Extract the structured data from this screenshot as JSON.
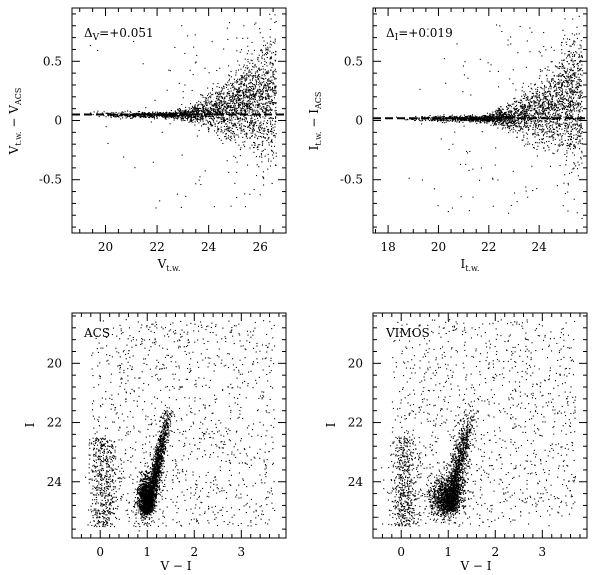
{
  "chart_data": [
    {
      "type": "scatter",
      "xlabel": "V",
      "xlabel_sub": "t.w.",
      "ylabel": "V",
      "ylabel_sub1": "t.w.",
      "ylabel_mid": " − V",
      "ylabel_sub2": "ACS",
      "xlim": [
        18.7,
        27.0
      ],
      "ylim": [
        -0.95,
        0.95
      ],
      "xticks": [
        "20",
        "22",
        "24",
        "26"
      ],
      "yticks": [
        "0.5",
        "0",
        "-0.5"
      ],
      "annotation_sym": "Δ",
      "annotation_sub": "V",
      "annotation_val": "=+0.051",
      "offset_line": 0.051
    },
    {
      "type": "scatter",
      "xlabel": "I",
      "xlabel_sub": "t.w.",
      "ylabel": "I",
      "ylabel_sub1": "t.w.",
      "ylabel_mid": " − I",
      "ylabel_sub2": "ACS",
      "xlim": [
        17.4,
        25.9
      ],
      "ylim": [
        -0.95,
        0.95
      ],
      "xticks": [
        "18",
        "20",
        "22",
        "24"
      ],
      "yticks": [
        "0.5",
        "0",
        "-0.5"
      ],
      "annotation_sym": "Δ",
      "annotation_sub": "I",
      "annotation_val": "=+0.019",
      "offset_line": 0.019
    },
    {
      "type": "scatter",
      "panel_label": "ACS",
      "xlabel": "V − I",
      "ylabel": "I",
      "xlim": [
        -0.6,
        3.95
      ],
      "ylim": [
        25.9,
        18.3
      ],
      "xticks": [
        "0",
        "1",
        "2",
        "3"
      ],
      "yticks": [
        "20",
        "22",
        "24"
      ]
    },
    {
      "type": "scatter",
      "panel_label": "VIMOS",
      "xlabel": "V − I",
      "ylabel": "I",
      "xlim": [
        -0.6,
        3.95
      ],
      "ylim": [
        25.9,
        18.3
      ],
      "xticks": [
        "0",
        "1",
        "2",
        "3"
      ],
      "yticks": [
        "20",
        "22",
        "24"
      ]
    }
  ]
}
